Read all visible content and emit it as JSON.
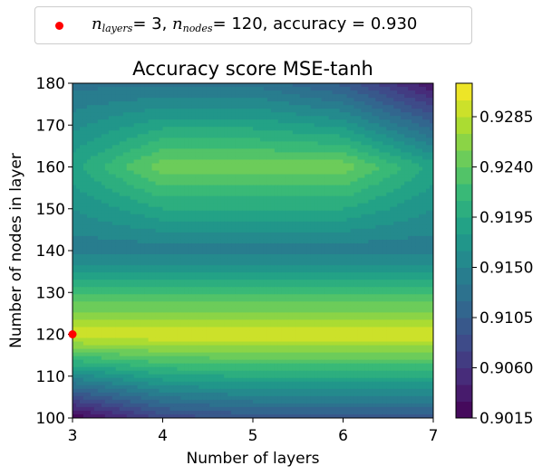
{
  "chart_data": {
    "type": "heatmap",
    "title": "Accuracy score MSE-tanh",
    "xlabel": "Number of layers",
    "ylabel": "Number of nodes in layer",
    "x": [
      3,
      4,
      5,
      6,
      7
    ],
    "y": [
      100,
      120,
      140,
      160,
      180
    ],
    "xlim": [
      3,
      7
    ],
    "ylim": [
      100,
      180
    ],
    "xticks": [
      "3",
      "4",
      "5",
      "6",
      "7"
    ],
    "yticks": [
      "100",
      "110",
      "120",
      "130",
      "140",
      "150",
      "160",
      "170",
      "180"
    ],
    "z": [
      [
        0.9015,
        0.908,
        0.9095,
        0.9095,
        0.9095
      ],
      [
        0.93,
        0.93,
        0.93,
        0.93,
        0.93
      ],
      [
        0.914,
        0.914,
        0.914,
        0.914,
        0.914
      ],
      [
        0.919,
        0.925,
        0.925,
        0.925,
        0.919
      ],
      [
        0.913,
        0.913,
        0.913,
        0.91,
        0.903
      ]
    ],
    "colormap": "viridis",
    "colorbar": {
      "min": 0.9015,
      "max": 0.9315,
      "step": 0.0015,
      "ticks": [
        "0.9015",
        "0.9060",
        "0.9105",
        "0.9150",
        "0.9195",
        "0.9240",
        "0.9285"
      ]
    },
    "marker": {
      "x": 3,
      "y": 120,
      "color": "#ff0000"
    },
    "legend": {
      "placement": "top",
      "prefix_layers": "n",
      "sub_layers": "layers",
      "val_layers": "= 3, ",
      "prefix_nodes": "n",
      "sub_nodes": "nodes",
      "val_nodes": "= 120, accuracy = 0.930"
    }
  }
}
